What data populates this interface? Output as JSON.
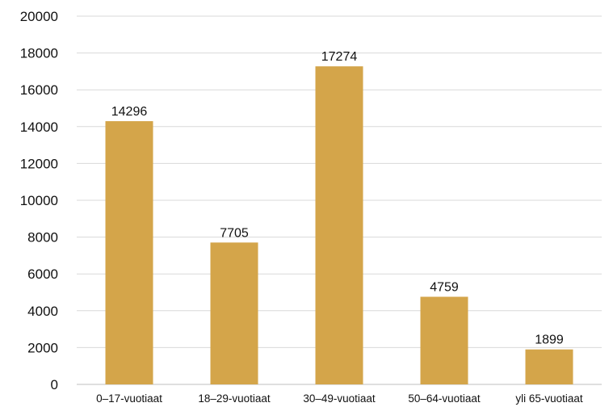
{
  "chart_data": {
    "type": "bar",
    "title": "",
    "xlabel": "",
    "ylabel": "",
    "categories": [
      "0–17-vuotiaat",
      "18–29-vuotiaat",
      "30–49-vuotiaat",
      "50–64-vuotiaat",
      "yli 65-vuotiaat"
    ],
    "values": [
      14296,
      7705,
      17274,
      4759,
      1899
    ],
    "data_labels": [
      "14296",
      "7705",
      "17274",
      "4759",
      "1899"
    ],
    "ylim": [
      0,
      20000
    ],
    "yticks": [
      0,
      2000,
      4000,
      6000,
      8000,
      10000,
      12000,
      14000,
      16000,
      18000,
      20000
    ],
    "ytick_labels": [
      "0",
      "2000",
      "4000",
      "6000",
      "8000",
      "10000",
      "12000",
      "14000",
      "16000",
      "18000",
      "20000"
    ],
    "grid": true,
    "legend": "none",
    "bar_color": "#d4a54a",
    "grid_color": "#d9d9d9"
  }
}
